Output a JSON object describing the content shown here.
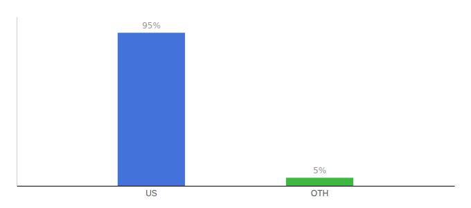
{
  "chart_data": {
    "type": "bar",
    "categories": [
      "US",
      "OTH"
    ],
    "values": [
      95,
      5
    ],
    "value_labels": [
      "95%",
      "5%"
    ],
    "data_labels": true,
    "colors": [
      "#4472db",
      "#3cb843"
    ],
    "ylim": [
      0,
      105
    ],
    "grid": false,
    "tick_labels": "x"
  }
}
